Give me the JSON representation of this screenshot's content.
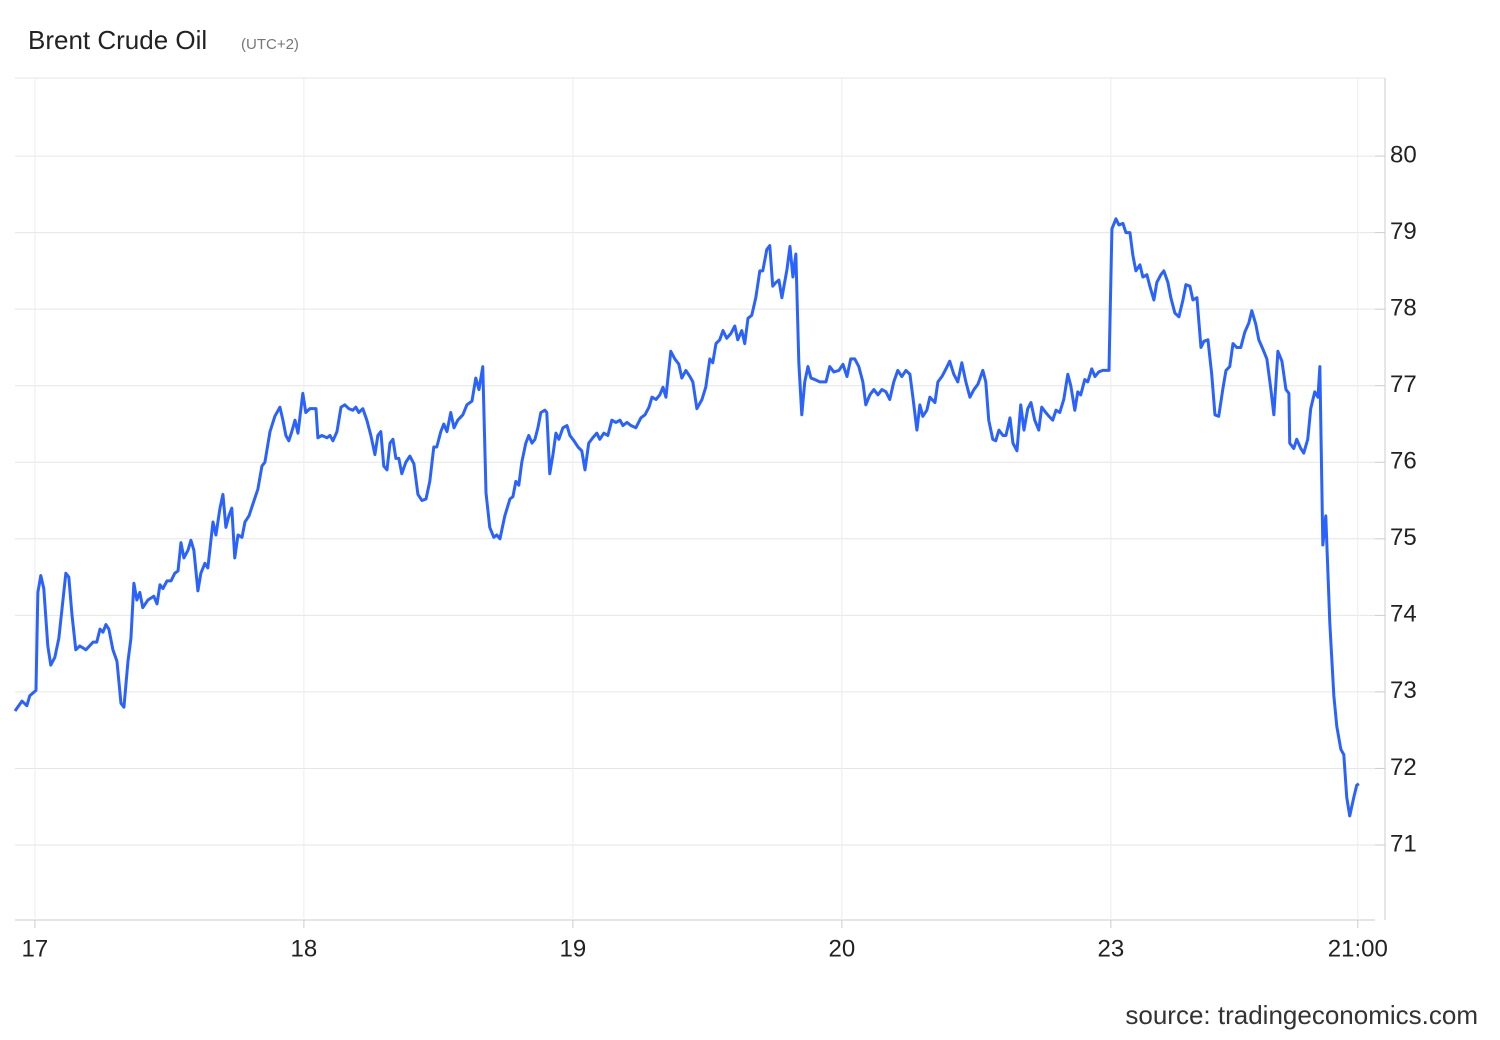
{
  "chart_data": {
    "type": "line",
    "title": "Brent Crude Oil",
    "subtitle": "(UTC+2)",
    "source": "source: tradingeconomics.com",
    "color": "#2962ff",
    "x": [
      -0.074,
      -0.048,
      -0.03,
      -0.019,
      0.004,
      0.011,
      0.022,
      0.033,
      0.048,
      0.059,
      0.074,
      0.089,
      0.115,
      0.126,
      0.138,
      0.152,
      0.167,
      0.19,
      0.216,
      0.23,
      0.242,
      0.253,
      0.264,
      0.275,
      0.29,
      0.305,
      0.32,
      0.331,
      0.346,
      0.357,
      0.368,
      0.379,
      0.39,
      0.401,
      0.42,
      0.442,
      0.454,
      0.465,
      0.476,
      0.491,
      0.506,
      0.52,
      0.532,
      0.543,
      0.554,
      0.569,
      0.58,
      0.591,
      0.606,
      0.617,
      0.632,
      0.643,
      0.662,
      0.673,
      0.688,
      0.699,
      0.71,
      0.721,
      0.732,
      0.743,
      0.755,
      0.77,
      0.781,
      0.796,
      0.81,
      0.829,
      0.844,
      0.855,
      0.874,
      0.892,
      0.911,
      0.922,
      0.933,
      0.944,
      0.955,
      0.967,
      0.978,
      0.996,
      1.007,
      1.022,
      1.045,
      1.052,
      1.067,
      1.086,
      1.097,
      1.108,
      1.123,
      1.138,
      1.152,
      1.167,
      1.182,
      1.193,
      1.204,
      1.219,
      1.234,
      1.249,
      1.264,
      1.275,
      1.286,
      1.297,
      1.309,
      1.32,
      1.331,
      1.342,
      1.353,
      1.364,
      1.379,
      1.394,
      1.409,
      1.424,
      1.439,
      1.454,
      1.468,
      1.483,
      1.494,
      1.509,
      1.52,
      1.532,
      1.546,
      1.558,
      1.572,
      1.591,
      1.606,
      1.625,
      1.639,
      1.651,
      1.665,
      1.677,
      1.691,
      1.706,
      1.717,
      1.729,
      1.747,
      1.766,
      1.777,
      1.788,
      1.799,
      1.81,
      1.825,
      1.836,
      1.848,
      1.859,
      1.87,
      1.881,
      1.896,
      1.903,
      1.914,
      1.926,
      1.937,
      1.948,
      1.963,
      1.978,
      1.989,
      2.004,
      2.019,
      2.033,
      2.045,
      2.059,
      2.074,
      2.089,
      2.1,
      2.115,
      2.13,
      2.145,
      2.16,
      2.175,
      2.186,
      2.201,
      2.216,
      2.234,
      2.253,
      2.268,
      2.283,
      2.294,
      2.309,
      2.323,
      2.335,
      2.346,
      2.364,
      2.379,
      2.394,
      2.405,
      2.42,
      2.435,
      2.446,
      2.461,
      2.48,
      2.494,
      2.509,
      2.52,
      2.532,
      2.546,
      2.558,
      2.572,
      2.587,
      2.602,
      2.613,
      2.628,
      2.639,
      2.651,
      2.665,
      2.68,
      2.695,
      2.706,
      2.721,
      2.732,
      2.743,
      2.755,
      2.766,
      2.777,
      2.796,
      2.807,
      2.818,
      2.829,
      2.84,
      2.851,
      2.862,
      2.874,
      2.885,
      2.9,
      2.918,
      2.941,
      2.955,
      2.97,
      2.989,
      3.004,
      3.019,
      3.033,
      3.048,
      3.063,
      3.078,
      3.089,
      3.104,
      3.119,
      3.134,
      3.149,
      3.164,
      3.178,
      3.193,
      3.208,
      3.223,
      3.238,
      3.253,
      3.264,
      3.279,
      3.29,
      3.301,
      3.316,
      3.327,
      3.346,
      3.357,
      3.372,
      3.387,
      3.401,
      3.416,
      3.431,
      3.446,
      3.461,
      3.476,
      3.491,
      3.506,
      3.524,
      3.535,
      3.546,
      3.561,
      3.572,
      3.584,
      3.599,
      3.61,
      3.625,
      3.636,
      3.651,
      3.665,
      3.677,
      3.691,
      3.703,
      3.717,
      3.732,
      3.743,
      3.758,
      3.77,
      3.784,
      3.796,
      3.81,
      3.825,
      3.84,
      3.851,
      3.866,
      3.877,
      3.888,
      3.903,
      3.914,
      3.929,
      3.941,
      3.955,
      3.97,
      3.993,
      4.004,
      4.019,
      4.03,
      4.045,
      4.056,
      4.071,
      4.082,
      4.093,
      4.108,
      4.119,
      4.134,
      4.145,
      4.16,
      4.171,
      4.186,
      4.197,
      4.212,
      4.223,
      4.238,
      4.253,
      4.268,
      4.279,
      4.294,
      4.305,
      4.32,
      4.335,
      4.346,
      4.361,
      4.375,
      4.387,
      4.401,
      4.416,
      4.428,
      4.442,
      4.454,
      4.468,
      4.483,
      4.498,
      4.513,
      4.524,
      4.539,
      4.55,
      4.565,
      4.58,
      4.595,
      4.606,
      4.621,
      4.636,
      4.651,
      4.662,
      4.665,
      4.68,
      4.691,
      4.706,
      4.717,
      4.732,
      4.743,
      4.758,
      4.77,
      4.777,
      4.788,
      4.799,
      4.814,
      4.829,
      4.84,
      4.855,
      4.866,
      4.877,
      4.888,
      4.903,
      4.914,
      4.922
    ],
    "values": [
      72.75,
      72.88,
      72.82,
      72.95,
      73.02,
      74.3,
      74.52,
      74.35,
      73.6,
      73.35,
      73.45,
      73.7,
      74.55,
      74.5,
      74.0,
      73.55,
      73.6,
      73.55,
      73.65,
      73.65,
      73.82,
      73.78,
      73.88,
      73.82,
      73.55,
      73.4,
      72.85,
      72.8,
      73.4,
      73.7,
      74.42,
      74.2,
      74.3,
      74.1,
      74.2,
      74.25,
      74.15,
      74.4,
      74.35,
      74.45,
      74.45,
      74.55,
      74.58,
      74.95,
      74.75,
      74.85,
      74.98,
      74.85,
      74.32,
      74.55,
      74.68,
      74.62,
      75.22,
      75.05,
      75.4,
      75.58,
      75.15,
      75.3,
      75.4,
      74.75,
      75.05,
      75.02,
      75.22,
      75.3,
      75.45,
      75.65,
      75.95,
      76.0,
      76.4,
      76.6,
      76.72,
      76.55,
      76.35,
      76.28,
      76.4,
      76.55,
      76.38,
      76.9,
      76.65,
      76.7,
      76.7,
      76.32,
      76.35,
      76.32,
      76.35,
      76.28,
      76.4,
      76.72,
      76.75,
      76.7,
      76.68,
      76.72,
      76.65,
      76.7,
      76.55,
      76.35,
      76.1,
      76.35,
      76.4,
      75.95,
      75.9,
      76.25,
      76.3,
      76.05,
      76.05,
      75.85,
      76.0,
      76.08,
      75.98,
      75.58,
      75.5,
      75.52,
      75.75,
      76.2,
      76.2,
      76.4,
      76.5,
      76.4,
      76.65,
      76.45,
      76.55,
      76.62,
      76.75,
      76.8,
      77.1,
      76.95,
      77.25,
      75.6,
      75.15,
      75.02,
      75.05,
      75.0,
      75.3,
      75.52,
      75.55,
      75.75,
      75.7,
      76.0,
      76.25,
      76.35,
      76.25,
      76.3,
      76.45,
      76.65,
      76.68,
      76.65,
      75.85,
      76.1,
      76.38,
      76.3,
      76.45,
      76.48,
      76.35,
      76.28,
      76.2,
      76.15,
      75.9,
      76.25,
      76.32,
      76.38,
      76.3,
      76.38,
      76.35,
      76.55,
      76.52,
      76.55,
      76.48,
      76.52,
      76.48,
      76.45,
      76.58,
      76.62,
      76.72,
      76.85,
      76.82,
      76.88,
      76.98,
      76.85,
      77.45,
      77.35,
      77.28,
      77.1,
      77.2,
      77.12,
      77.05,
      76.7,
      76.82,
      76.98,
      77.35,
      77.3,
      77.55,
      77.6,
      77.72,
      77.62,
      77.68,
      77.78,
      77.6,
      77.72,
      77.55,
      77.88,
      77.92,
      78.15,
      78.5,
      78.5,
      78.78,
      78.83,
      78.3,
      78.35,
      78.38,
      78.15,
      78.52,
      78.82,
      78.42,
      78.72,
      77.3,
      76.62,
      77.05,
      77.25,
      77.1,
      77.08,
      77.05,
      77.05,
      77.25,
      77.18,
      77.2,
      77.28,
      77.12,
      77.35,
      77.35,
      77.25,
      77.05,
      76.75,
      76.88,
      76.95,
      76.88,
      76.95,
      76.92,
      76.82,
      77.05,
      77.2,
      77.12,
      77.2,
      77.15,
      76.85,
      76.42,
      76.75,
      76.6,
      76.68,
      76.85,
      76.78,
      77.05,
      77.12,
      77.22,
      77.32,
      77.15,
      77.05,
      77.3,
      77.05,
      76.85,
      76.95,
      77.02,
      77.2,
      77.05,
      76.55,
      76.3,
      76.28,
      76.42,
      76.35,
      76.35,
      76.58,
      76.25,
      76.15,
      76.75,
      76.42,
      76.7,
      76.78,
      76.55,
      76.42,
      76.72,
      76.65,
      76.6,
      76.55,
      76.68,
      76.65,
      76.82,
      77.15,
      77.0,
      76.68,
      76.92,
      76.88,
      77.08,
      77.05,
      77.22,
      77.12,
      77.18,
      77.2,
      77.2,
      79.05,
      79.18,
      79.1,
      79.12,
      79.0,
      79.0,
      78.7,
      78.5,
      78.58,
      78.42,
      78.45,
      78.3,
      78.12,
      78.35,
      78.45,
      78.5,
      78.35,
      78.15,
      77.95,
      77.9,
      78.12,
      78.32,
      78.3,
      78.12,
      78.15,
      77.5,
      77.58,
      77.6,
      77.15,
      76.62,
      76.6,
      76.95,
      77.2,
      77.25,
      77.55,
      77.5,
      77.5,
      77.7,
      77.82,
      77.98,
      77.8,
      77.6,
      77.48,
      77.35,
      76.95,
      76.62,
      77.45,
      77.32,
      76.95,
      76.9,
      76.25,
      76.18,
      76.3,
      76.18,
      76.12,
      76.3,
      76.7,
      76.92,
      76.85,
      77.25,
      74.92,
      75.3,
      73.9,
      72.95,
      72.55,
      72.25,
      72.18,
      71.62,
      71.38,
      71.62,
      71.78,
      71.8
    ],
    "xlim": [
      -0.074,
      4.982
    ],
    "xticks": [
      {
        "value": 0,
        "label": "17"
      },
      {
        "value": 1,
        "label": "18"
      },
      {
        "value": 2,
        "label": "19"
      },
      {
        "value": 3,
        "label": "20"
      },
      {
        "value": 4,
        "label": "23"
      },
      {
        "value": 4.918,
        "label": "21:00"
      }
    ],
    "ylim": [
      70.02,
      81.02
    ],
    "yticks": [
      71,
      72,
      73,
      74,
      75,
      76,
      77,
      78,
      79,
      80
    ],
    "grid": true
  }
}
